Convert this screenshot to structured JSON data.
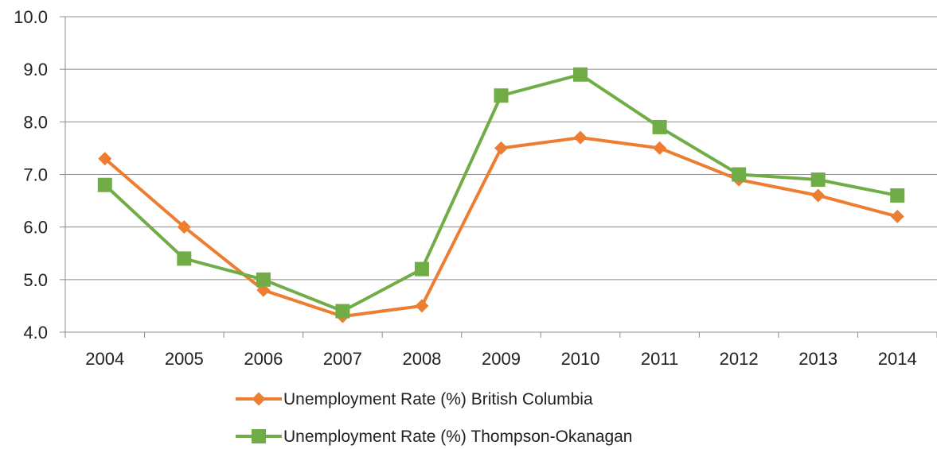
{
  "chart_data": {
    "type": "line",
    "title": "",
    "xlabel": "",
    "ylabel": "",
    "categories": [
      "2004",
      "2005",
      "2006",
      "2007",
      "2008",
      "2009",
      "2010",
      "2011",
      "2012",
      "2013",
      "2014"
    ],
    "ylim": [
      4.0,
      10.0
    ],
    "yticks": [
      "4.0",
      "5.0",
      "6.0",
      "7.0",
      "8.0",
      "9.0",
      "10.0"
    ],
    "grid": "horizontal",
    "legend_position": "bottom",
    "series": [
      {
        "name": "Unemployment Rate (%) British Columbia",
        "color": "#ED7D31",
        "marker": "diamond",
        "values": [
          7.3,
          6.0,
          4.8,
          4.3,
          4.5,
          7.5,
          7.7,
          7.5,
          6.9,
          6.6,
          6.2
        ]
      },
      {
        "name": "Unemployment Rate (%) Thompson-Okanagan",
        "color": "#70AD47",
        "marker": "square",
        "values": [
          6.8,
          5.4,
          5.0,
          4.4,
          5.2,
          8.5,
          8.9,
          7.9,
          7.0,
          6.9,
          6.6
        ]
      }
    ]
  }
}
